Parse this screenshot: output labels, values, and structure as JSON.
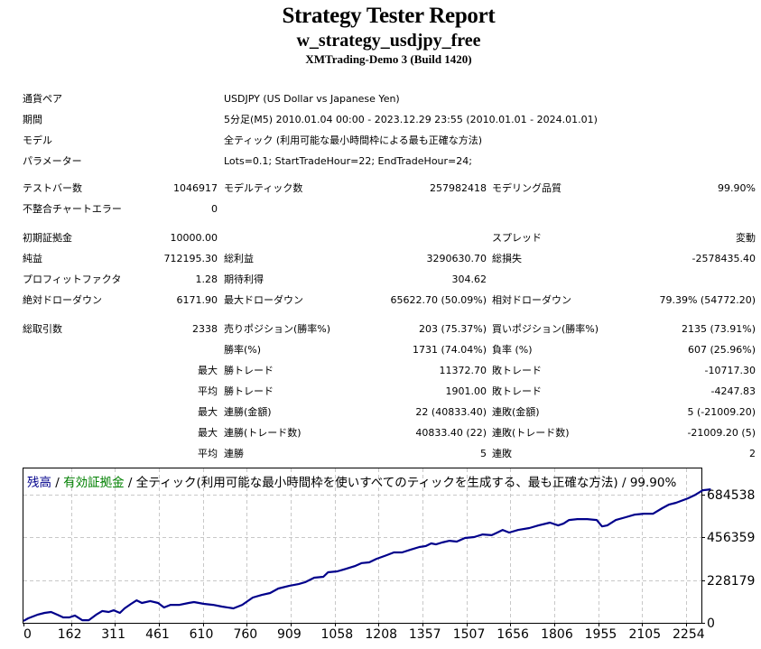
{
  "header": {
    "title": "Strategy Tester Report",
    "ea_name": "w_strategy_usdjpy_free",
    "server": "XMTrading-Demo 3 (Build 1420)"
  },
  "settings": {
    "symbol_label": "通貨ペア",
    "symbol_value": "USDJPY (US Dollar vs Japanese Yen)",
    "period_label": "期間",
    "period_value": "5分足(M5) 2010.01.04 00:00 - 2023.12.29 23:55 (2010.01.01 - 2024.01.01)",
    "model_label": "モデル",
    "model_value": "全ティック (利用可能な最小時間枠による最も正確な方法)",
    "params_label": "パラメーター",
    "params_value": "Lots=0.1; StartTradeHour=22; EndTradeHour=24;"
  },
  "quality": {
    "bars_label": "テストバー数",
    "bars_value": "1046917",
    "ticks_label": "モデルティック数",
    "ticks_value": "257982418",
    "modeling_label": "モデリング品質",
    "modeling_value": "99.90%",
    "mismatch_label": "不整合チャートエラー",
    "mismatch_value": "0"
  },
  "results": {
    "deposit_label": "初期証拠金",
    "deposit_value": "10000.00",
    "spread_label": "スプレッド",
    "spread_value": "変動",
    "net_profit_label": "純益",
    "net_profit_value": "712195.30",
    "gross_profit_label": "総利益",
    "gross_profit_value": "3290630.70",
    "gross_loss_label": "総損失",
    "gross_loss_value": "-2578435.40",
    "profit_factor_label": "プロフィットファクタ",
    "profit_factor_value": "1.28",
    "expected_payoff_label": "期待利得",
    "expected_payoff_value": "304.62",
    "abs_dd_label": "絶対ドローダウン",
    "abs_dd_value": "6171.90",
    "max_dd_label": "最大ドローダウン",
    "max_dd_value": "65622.70 (50.09%)",
    "rel_dd_label": "相対ドローダウン",
    "rel_dd_value": "79.39% (54772.20)"
  },
  "trades": {
    "total_label": "総取引数",
    "total_value": "2338",
    "short_label": "売りポジション(勝率%)",
    "short_value": "203 (75.37%)",
    "long_label": "買いポジション(勝率%)",
    "long_value": "2135 (73.91%)",
    "win_rate_label": "勝率(%)",
    "win_rate_value": "1731 (74.04%)",
    "loss_rate_label": "負率 (%)",
    "loss_rate_value": "607 (25.96%)",
    "largest_prefix": "最大",
    "largest_win_label": "勝トレード",
    "largest_win_value": "11372.70",
    "largest_loss_label": "敗トレード",
    "largest_loss_value": "-10717.30",
    "average_prefix": "平均",
    "average_win_label": "勝トレード",
    "average_win_value": "1901.00",
    "average_loss_label": "敗トレード",
    "average_loss_value": "-4247.83",
    "max_prefix_1": "最大",
    "max_cons_wins_money_label": "連勝(金額)",
    "max_cons_wins_money_value": "22 (40833.40)",
    "max_cons_losses_money_label": "連敗(金額)",
    "max_cons_losses_money_value": "5 (-21009.20)",
    "max_prefix_2": "最大",
    "max_cons_wins_count_label": "連勝(トレード数)",
    "max_cons_wins_count_value": "40833.40 (22)",
    "max_cons_losses_count_label": "連敗(トレード数)",
    "max_cons_losses_count_value": "-21009.20 (5)",
    "avg_prefix_2": "平均",
    "avg_cons_wins_label": "連勝",
    "avg_cons_wins_value": "5",
    "avg_cons_losses_label": "連敗",
    "avg_cons_losses_value": "2"
  },
  "chart": {
    "legend_balance": "残高",
    "legend_sep1": " / ",
    "legend_equity": "有効証拠金",
    "legend_rest": " / 全ティック(利用可能な最小時間枠を使いすべてのティックを生成する、最も正確な方法) / 99.90%",
    "colors": {
      "balance": "#00008b",
      "equity": "#008000",
      "grid": "#c8c8c8"
    }
  },
  "chart_data": {
    "type": "line",
    "title": "残高 / 有効証拠金 / 全ティック(利用可能な最小時間枠を使いすべてのティックを生成する、最も正確な方法) / 99.90%",
    "xlabel": "",
    "ylabel": "",
    "x_ticks": [
      0,
      162,
      311,
      461,
      610,
      760,
      909,
      1058,
      1208,
      1357,
      1507,
      1656,
      1806,
      1955,
      2105,
      2254
    ],
    "y_ticks": [
      0,
      228179,
      456359,
      684538
    ],
    "xlim": [
      0,
      2338
    ],
    "ylim": [
      0,
      780000
    ],
    "grid": true,
    "legend_position": "top-left",
    "series": [
      {
        "name": "残高",
        "color": "#00008b",
        "x": [
          0,
          16,
          47,
          72,
          94,
          116,
          135,
          156,
          175,
          200,
          222,
          247,
          268,
          290,
          307,
          328,
          344,
          366,
          385,
          403,
          431,
          458,
          478,
          500,
          531,
          562,
          580,
          614,
          645,
          675,
          714,
          744,
          780,
          811,
          839,
          867,
          905,
          936,
          958,
          989,
          1020,
          1036,
          1067,
          1098,
          1129,
          1151,
          1176,
          1201,
          1235,
          1260,
          1288,
          1316,
          1347,
          1369,
          1387,
          1403,
          1424,
          1449,
          1474,
          1502,
          1533,
          1562,
          1593,
          1612,
          1630,
          1652,
          1683,
          1721,
          1752,
          1791,
          1819,
          1837,
          1856,
          1884,
          1918,
          1950,
          1968,
          1986,
          2015,
          2049,
          2080,
          2111,
          2142,
          2173,
          2195,
          2220,
          2260,
          2286,
          2311,
          2338
        ],
        "values": [
          10000,
          24000,
          43000,
          53000,
          58000,
          43000,
          29000,
          29000,
          39000,
          14000,
          14000,
          43000,
          63000,
          58000,
          67000,
          53000,
          77000,
          101000,
          120000,
          106000,
          116000,
          106000,
          82000,
          96000,
          96000,
          106000,
          111000,
          101000,
          96000,
          87000,
          77000,
          96000,
          135000,
          149000,
          159000,
          183000,
          198000,
          207000,
          217000,
          241000,
          246000,
          270000,
          275000,
          289000,
          304000,
          319000,
          323000,
          342000,
          361000,
          376000,
          376000,
          390000,
          405000,
          410000,
          424000,
          419000,
          429000,
          438000,
          434000,
          453000,
          458000,
          472000,
          468000,
          482000,
          496000,
          482000,
          496000,
          506000,
          520000,
          535000,
          520000,
          530000,
          549000,
          554000,
          554000,
          549000,
          515000,
          520000,
          549000,
          564000,
          578000,
          583000,
          583000,
          612000,
          631000,
          641000,
          665000,
          684000,
          708000,
          713000
        ]
      }
    ]
  }
}
